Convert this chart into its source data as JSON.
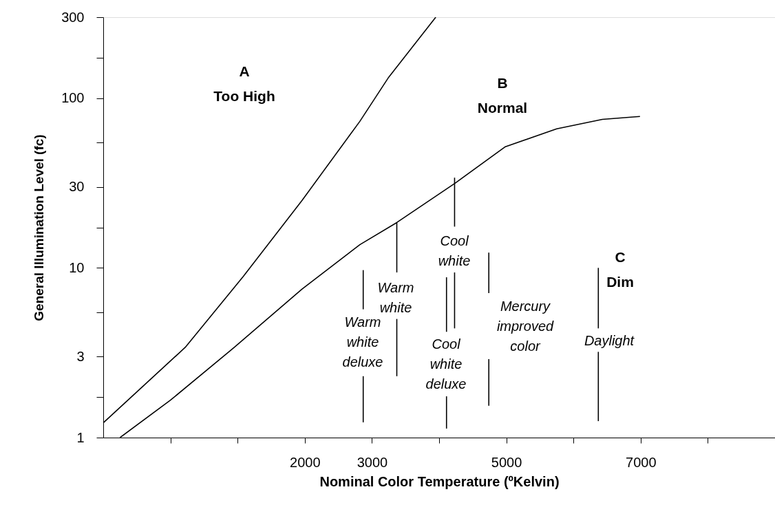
{
  "chart_data": {
    "type": "line",
    "xlabel": "Nominal Color Temperature (ºKelvin)",
    "ylabel": "General Illumination Level (fc)",
    "log": "y",
    "grid": false,
    "legend": false,
    "xlim": [
      -1000,
      9000
    ],
    "ylim": [
      1,
      300
    ],
    "xticks": [
      {
        "value": 0,
        "label": null
      },
      {
        "value": 1000,
        "label": null
      },
      2000,
      3000,
      {
        "value": 4000,
        "label": null
      },
      5000,
      {
        "value": 6000,
        "label": null
      },
      7000,
      {
        "value": 8000,
        "label": null
      },
      {
        "value": 9000,
        "label": null
      }
    ],
    "yticks": [
      1,
      {
        "value": 1.73,
        "label": null
      },
      3,
      {
        "value": 5.48,
        "label": null
      },
      10,
      {
        "value": 17.3,
        "label": null
      },
      30,
      {
        "value": 54.8,
        "label": null
      },
      100,
      {
        "value": 173,
        "label": null
      },
      300
    ],
    "series": [
      {
        "color": "#000000",
        "x": [
          -1000,
          220,
          1085,
          1960,
          2820,
          3250,
          3950
        ],
        "values": [
          1.22,
          3.4,
          8.9,
          25,
          73,
          133,
          300
        ]
      },
      {
        "color": "#000000",
        "x": [
          -750,
          0,
          950,
          1960,
          2820,
          3370,
          4240,
          4980,
          5750,
          6430,
          6990
        ],
        "values": [
          1,
          1.66,
          3.4,
          7.5,
          13.7,
          18.5,
          31.6,
          51.6,
          66,
          75,
          78
        ]
      },
      {
        "color": "#000000",
        "x": [
          2870,
          2870
        ],
        "values": [
          9.7,
          5.7
        ]
      },
      {
        "color": "#000000",
        "x": [
          2870,
          2870
        ],
        "values": [
          2.3,
          1.23
        ]
      },
      {
        "color": "#000000",
        "x": [
          3370,
          3370
        ],
        "values": [
          18.5,
          9.4
        ]
      },
      {
        "color": "#000000",
        "x": [
          3370,
          3370
        ],
        "values": [
          5.0,
          2.3
        ]
      },
      {
        "color": "#000000",
        "x": [
          4230,
          4230
        ],
        "values": [
          34,
          17.5
        ]
      },
      {
        "color": "#000000",
        "x": [
          4230,
          4230
        ],
        "values": [
          9.4,
          4.4
        ]
      },
      {
        "color": "#000000",
        "x": [
          4110,
          4110
        ],
        "values": [
          8.8,
          4.2
        ]
      },
      {
        "color": "#000000",
        "x": [
          4110,
          4110
        ],
        "values": [
          1.75,
          1.13
        ]
      },
      {
        "color": "#000000",
        "x": [
          4740,
          4740
        ],
        "values": [
          12.3,
          7.1
        ]
      },
      {
        "color": "#000000",
        "x": [
          4740,
          4740
        ],
        "values": [
          2.9,
          1.54
        ]
      },
      {
        "color": "#000000",
        "x": [
          6370,
          6370
        ],
        "values": [
          10,
          4.4
        ]
      },
      {
        "color": "#000000",
        "x": [
          6370,
          6370
        ],
        "values": [
          3.2,
          1.25
        ]
      }
    ],
    "annotations": [
      "A\nToo High",
      "B\nNormal",
      "C\nDim",
      "Warm\nwhite\ndeluxe",
      "Warm\nwhite",
      "Cool\nwhite",
      "Cool\nwhite\ndeluxe",
      "Mercury\nimproved\ncolor",
      "Daylight"
    ]
  }
}
